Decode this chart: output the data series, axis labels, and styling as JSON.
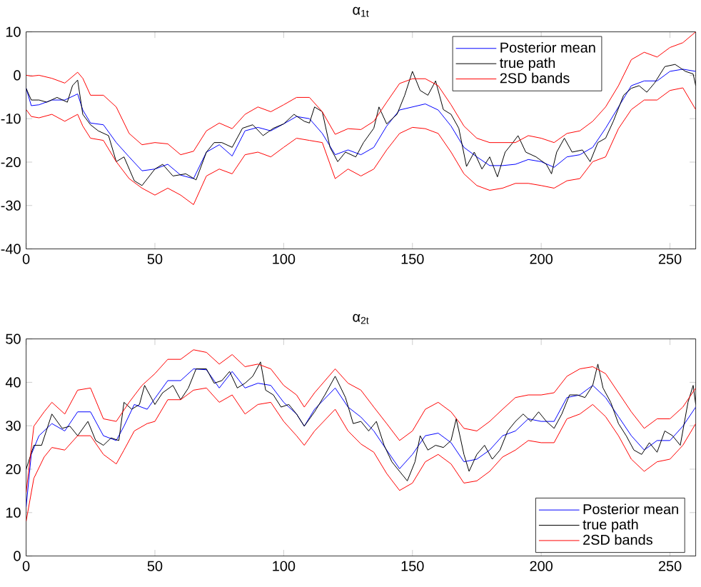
{
  "chart_data": [
    {
      "type": "line",
      "title": "α$_{1t}$",
      "xlim": [
        0,
        260
      ],
      "ylim": [
        -40,
        10
      ],
      "xticks": [
        0,
        50,
        100,
        150,
        200,
        250
      ],
      "yticks": [
        -40,
        -30,
        -20,
        -10,
        0,
        10
      ],
      "legend": "top right",
      "x": [
        0,
        2,
        5,
        10,
        15,
        20,
        22,
        25,
        30,
        35,
        40,
        45,
        50,
        55,
        60,
        65,
        70,
        75,
        80,
        85,
        90,
        95,
        100,
        105,
        110,
        115,
        120,
        125,
        130,
        135,
        140,
        145,
        150,
        155,
        160,
        165,
        170,
        175,
        180,
        185,
        190,
        195,
        200,
        205,
        210,
        215,
        220,
        225,
        230,
        235,
        240,
        245,
        250,
        255,
        260
      ],
      "series": [
        {
          "name": "Posterior mean",
          "color": "#0000ff",
          "values": [
            -3,
            -7,
            -6.8,
            -5.7,
            -5.7,
            -4.3,
            -8,
            -11,
            -11.4,
            -15.5,
            -18.8,
            -22,
            -21.6,
            -20.5,
            -23,
            -23.8,
            -17.7,
            -16,
            -18.6,
            -12.8,
            -12,
            -12.8,
            -11.2,
            -9.5,
            -10,
            -13.4,
            -18.3,
            -17.2,
            -18.3,
            -16.6,
            -11.7,
            -8,
            -7.3,
            -6.6,
            -8,
            -11.7,
            -16.6,
            -18.8,
            -20.8,
            -20.8,
            -20.5,
            -19.4,
            -19.9,
            -21.2,
            -18.8,
            -18.3,
            -16.6,
            -12.2,
            -7.3,
            -2.4,
            -1.3,
            -1.3,
            0.9,
            1.4,
            0.9
          ]
        },
        {
          "name": "true path",
          "color": "#000000",
          "x": [
            0,
            2,
            5,
            8,
            12,
            16,
            18,
            20,
            22,
            25,
            28,
            32,
            35,
            38,
            42,
            45,
            50,
            53,
            57,
            62,
            66,
            70,
            73,
            76,
            80,
            84,
            88,
            92,
            96,
            100,
            104,
            108,
            110,
            112,
            115,
            118,
            121,
            124,
            128,
            131,
            135,
            137,
            140,
            144,
            147,
            150,
            153,
            156,
            159,
            162,
            165,
            168,
            171,
            174,
            177,
            180,
            183,
            186,
            189,
            191,
            194,
            198,
            202,
            204,
            206,
            209,
            212,
            216,
            219,
            222,
            225,
            228,
            232,
            235,
            238,
            241,
            244,
            248,
            252,
            256,
            259,
            260
          ],
          "values": [
            -3,
            -5.7,
            -5.7,
            -6.2,
            -5.1,
            -6.2,
            -2.4,
            -1.1,
            -9,
            -11.4,
            -12.8,
            -13.9,
            -19.9,
            -18.8,
            -24.3,
            -25.4,
            -21.6,
            -20.5,
            -23.2,
            -22.7,
            -24.1,
            -17.7,
            -15.5,
            -15.5,
            -16.6,
            -12.2,
            -11.4,
            -13.9,
            -12.2,
            -11.2,
            -9,
            -10.6,
            -11,
            -7.3,
            -8.4,
            -16.6,
            -19.9,
            -17.7,
            -18.8,
            -15.5,
            -12.2,
            -7.3,
            -11.2,
            -9,
            -4.6,
            0.9,
            -3.5,
            -4.6,
            -1.3,
            -7.9,
            -9,
            -12.2,
            -21,
            -17.7,
            -21.6,
            -18.8,
            -23.4,
            -17.7,
            -15.5,
            -13.9,
            -17.7,
            -18.8,
            -20.5,
            -22.7,
            -17.7,
            -14.5,
            -17.7,
            -17.2,
            -19.9,
            -15.5,
            -14.5,
            -10.6,
            -4.6,
            -3,
            -2.4,
            -3.9,
            -1.8,
            2,
            2.5,
            0.9,
            0.3,
            -2.4
          ]
        },
        {
          "name": "2SD bands",
          "color": "#ff0000",
          "values": [
            0,
            -0.2,
            0,
            -0.7,
            -1.8,
            0.7,
            -0.7,
            -4.6,
            -4.6,
            -7.3,
            -13.4,
            -16,
            -15.5,
            -15.8,
            -18.3,
            -17.5,
            -12.8,
            -11,
            -12.3,
            -9,
            -7.3,
            -8.4,
            -6.8,
            -5.1,
            -5.1,
            -8.4,
            -13.6,
            -12.3,
            -12.5,
            -10.6,
            -6.2,
            -1.9,
            -0.8,
            -0.8,
            -2.4,
            -6.8,
            -11.7,
            -14.5,
            -15.5,
            -15.5,
            -15.5,
            -13.9,
            -14.5,
            -15.5,
            -13.4,
            -12.8,
            -10.6,
            -7.3,
            -2.4,
            3.6,
            5.3,
            4.2,
            6.4,
            7.5,
            10
          ]
        },
        {
          "color": "#ff0000",
          "values": [
            -7.9,
            -9.5,
            -9.8,
            -9,
            -10.6,
            -9,
            -11.7,
            -14.5,
            -15,
            -19.9,
            -23.8,
            -26,
            -27.6,
            -26,
            -27.6,
            -29.8,
            -23.2,
            -21.6,
            -22.7,
            -18.3,
            -17.7,
            -18.8,
            -16.6,
            -14.5,
            -15,
            -15.5,
            -23.8,
            -21.6,
            -23.2,
            -21.6,
            -17.2,
            -13.4,
            -12,
            -12.3,
            -13.4,
            -17.7,
            -22.7,
            -25.4,
            -26.5,
            -26,
            -24.9,
            -24.9,
            -25.4,
            -26,
            -24.3,
            -23.8,
            -19.9,
            -18.8,
            -12.3,
            -7.9,
            -5.7,
            -5.7,
            -3.5,
            -2.9,
            -7.9
          ]
        }
      ]
    },
    {
      "type": "line",
      "title": "α$_{2t}$",
      "xlim": [
        0,
        260
      ],
      "ylim": [
        0,
        50
      ],
      "xticks": [
        0,
        50,
        100,
        150,
        200,
        250
      ],
      "yticks": [
        0,
        10,
        20,
        30,
        40,
        50
      ],
      "legend": "bottom right",
      "series": [
        {
          "name": "Posterior mean",
          "color": "#0000ff",
          "x": [
            0,
            2,
            5,
            10,
            15,
            20,
            25,
            30,
            35,
            38,
            42,
            47,
            50,
            55,
            60,
            65,
            70,
            75,
            80,
            85,
            90,
            95,
            100,
            105,
            108,
            112,
            120,
            125,
            130,
            135,
            140,
            145,
            150,
            155,
            160,
            165,
            170,
            175,
            180,
            185,
            190,
            195,
            200,
            205,
            210,
            215,
            220,
            225,
            230,
            235,
            240,
            245,
            250,
            255,
            260
          ],
          "values": [
            11.3,
            23.4,
            27.7,
            30.5,
            28.8,
            33.2,
            33.2,
            27.7,
            26.6,
            29.9,
            34.9,
            33.8,
            36.3,
            40.4,
            40.4,
            43.1,
            42.9,
            38.7,
            42.5,
            38.7,
            39.8,
            39.3,
            35.4,
            32.7,
            29.9,
            33.8,
            38.7,
            34.3,
            32,
            28.8,
            24.4,
            20.1,
            23.4,
            27.7,
            28.3,
            26.1,
            21.7,
            22.3,
            24.4,
            27.7,
            28.8,
            31.6,
            31,
            31,
            36.5,
            37.1,
            39.3,
            36.5,
            32.1,
            27.7,
            24.4,
            26.6,
            26.6,
            29.9,
            34.3
          ]
        },
        {
          "name": "true path",
          "color": "#000000",
          "x": [
            0,
            3,
            6,
            10,
            14,
            17,
            20,
            24,
            27,
            30,
            33,
            36,
            38,
            41,
            44,
            46,
            50,
            53,
            57,
            60,
            63,
            66,
            70,
            73,
            76,
            79,
            82,
            85,
            88,
            91,
            93,
            96,
            99,
            102,
            105,
            108,
            112,
            116,
            120,
            124,
            127,
            130,
            133,
            136,
            139,
            142,
            145,
            148,
            151,
            153,
            156,
            159,
            162,
            165,
            167,
            170,
            172,
            175,
            178,
            181,
            184,
            187,
            190,
            193,
            196,
            199,
            202,
            205,
            208,
            211,
            214,
            217,
            220,
            222,
            224,
            227,
            230,
            233,
            236,
            239,
            242,
            245,
            248,
            251,
            254,
            257,
            259,
            260
          ],
          "values": [
            20,
            25.5,
            25.5,
            32.7,
            29.4,
            29.9,
            27.7,
            31,
            26.6,
            25.5,
            27.2,
            26.6,
            35.4,
            33.8,
            34.9,
            39.3,
            34.9,
            37.6,
            39.3,
            36,
            38.7,
            43.1,
            43.1,
            39.8,
            40.4,
            42.5,
            38.7,
            39.8,
            41.4,
            44.7,
            38.2,
            37.1,
            34.3,
            34.9,
            32.7,
            29.9,
            33.2,
            37.1,
            41.4,
            36.5,
            30.5,
            31,
            28.8,
            31,
            25.5,
            21.7,
            19.5,
            17.3,
            21.7,
            27.7,
            24.4,
            25.5,
            25,
            26.6,
            31.6,
            23.4,
            19.5,
            23.4,
            25.5,
            22.3,
            24.4,
            28.8,
            31,
            32.7,
            31,
            33.2,
            31,
            29.4,
            32.7,
            37.1,
            37.1,
            36.5,
            39.3,
            44.2,
            38.7,
            35.4,
            30.5,
            27.7,
            24.4,
            23.4,
            26.1,
            23.9,
            28.8,
            27.7,
            25.5,
            35.4,
            39.3,
            34.9
          ]
        },
        {
          "name": "2SD bands",
          "color": "#ff0000",
          "x": [
            0,
            3,
            7,
            10,
            15,
            20,
            25,
            30,
            35,
            40,
            45,
            50,
            55,
            60,
            65,
            70,
            75,
            80,
            85,
            90,
            95,
            100,
            105,
            108,
            112,
            120,
            125,
            130,
            135,
            140,
            145,
            150,
            155,
            160,
            165,
            170,
            175,
            180,
            185,
            190,
            195,
            200,
            205,
            210,
            215,
            220,
            225,
            230,
            235,
            240,
            245,
            250,
            255,
            260
          ],
          "values": [
            14.6,
            29.9,
            33.2,
            35.4,
            32.7,
            38.2,
            38.7,
            31.6,
            31,
            35.4,
            39.3,
            42,
            45.3,
            45.3,
            47.5,
            46.9,
            44.2,
            46.4,
            43.6,
            44.2,
            43.1,
            39.3,
            37.1,
            34.3,
            37.6,
            43.1,
            39.8,
            38.2,
            34.3,
            30.5,
            26.6,
            28.8,
            33.8,
            35.4,
            33.2,
            29.4,
            28.8,
            31,
            33.8,
            36.5,
            37.1,
            37.1,
            37.6,
            41.4,
            43.1,
            43.6,
            42,
            37.6,
            33.2,
            29.4,
            31.6,
            31.6,
            34.3,
            38.7
          ]
        },
        {
          "color": "#ff0000",
          "x": [
            0,
            3,
            7,
            10,
            15,
            20,
            25,
            30,
            35,
            38,
            42,
            47,
            50,
            55,
            60,
            65,
            70,
            75,
            80,
            85,
            90,
            95,
            100,
            105,
            108,
            112,
            120,
            125,
            130,
            135,
            140,
            145,
            150,
            155,
            160,
            165,
            170,
            175,
            180,
            185,
            190,
            195,
            200,
            205,
            210,
            215,
            220,
            225,
            230,
            235,
            240,
            245,
            250,
            255,
            260
          ],
          "values": [
            8,
            17.9,
            22.8,
            25,
            24.4,
            27.7,
            27.7,
            23.4,
            21.2,
            24.4,
            28.8,
            30.5,
            31,
            36,
            36,
            38.2,
            38.7,
            35.4,
            37.1,
            32.7,
            34.9,
            35.4,
            31,
            27.7,
            25.5,
            28.8,
            33.8,
            28.8,
            25.8,
            23.9,
            19,
            15.1,
            16.8,
            21.7,
            23.4,
            21.2,
            16.8,
            17.3,
            19.5,
            22.8,
            24.4,
            26.6,
            26.1,
            26.1,
            31.6,
            32.7,
            34.9,
            32.1,
            27.7,
            22.3,
            19.5,
            21.7,
            22.3,
            25.5,
            30.5
          ]
        }
      ]
    }
  ]
}
